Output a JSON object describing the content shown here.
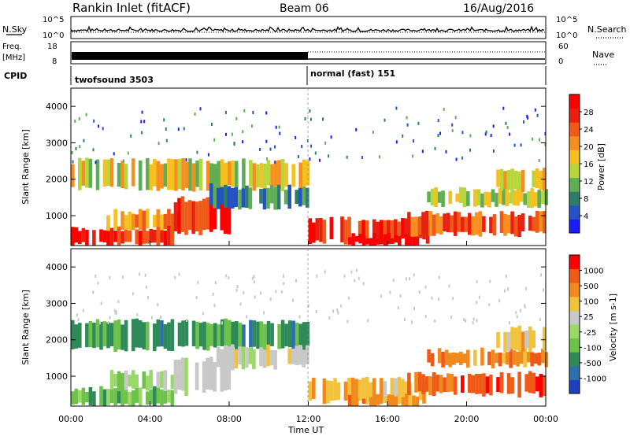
{
  "header": {
    "title": "Rankin Inlet (fitACF)",
    "beam": "Beam 06",
    "date": "16/Aug/2016"
  },
  "nsky_panel": {
    "left_label": "N.Sky",
    "left_ticks": [
      "10^5",
      "10^0"
    ],
    "right_label": "N.Search",
    "right_ticks": [
      "10^5",
      "10^0"
    ]
  },
  "freq_panel": {
    "left_label_1": "Freq.",
    "left_label_2": "[MHz]",
    "left_ticks": [
      "18",
      "8"
    ],
    "right_label": "Nave",
    "right_ticks": [
      "60",
      "0"
    ]
  },
  "cpid_panel": {
    "label": "CPID",
    "mode_1": "twofsound 3503",
    "mode_2": "normal (fast) 151"
  },
  "chart_data": [
    {
      "type": "heatmap",
      "name": "power",
      "ylabel": "Slant Range [km]",
      "ylim": [
        180,
        4500
      ],
      "yticks": [
        "1000",
        "2000",
        "3000",
        "4000"
      ],
      "colorbar_label": "Power [dB]",
      "colorbar_ticks": [
        "4",
        "8",
        "12",
        "16",
        "20",
        "24",
        "28"
      ],
      "colorbar_range": [
        0,
        32
      ],
      "colors": [
        "#1b1bff",
        "#2453c8",
        "#2e7d6a",
        "#5fae55",
        "#b6d63c",
        "#f5c020",
        "#f59020",
        "#f05a18",
        "#e82010",
        "#ff0000"
      ]
    },
    {
      "type": "heatmap",
      "name": "velocity",
      "ylabel": "Slant Range [km]",
      "ylim": [
        180,
        4500
      ],
      "yticks": [
        "1000",
        "2000",
        "3000",
        "4000"
      ],
      "colorbar_label": "Velocity [m s-1]",
      "colorbar_ticks": [
        "1000",
        "500",
        "100",
        "25",
        "-25",
        "-100",
        "-500",
        "-1000"
      ],
      "colors": [
        "#1f3fbf",
        "#2e6fae",
        "#2f8a5a",
        "#6cc24a",
        "#9ad86a",
        "#c8c8c8",
        "#f2c23c",
        "#f08a1c",
        "#f05a18",
        "#ff0000"
      ]
    }
  ],
  "x_axis": {
    "label": "Time UT",
    "ticks": [
      "00:00",
      "04:00",
      "08:00",
      "12:00",
      "16:00",
      "20:00",
      "00:00"
    ]
  }
}
